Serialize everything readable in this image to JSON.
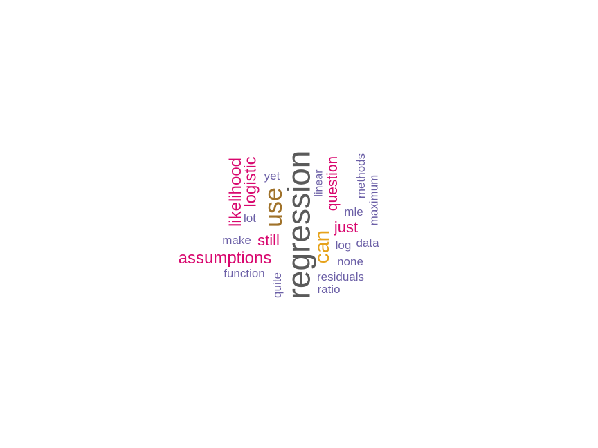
{
  "palette": {
    "gray": "#5a5a5a",
    "brown": "#a0722a",
    "orange": "#e6a21a",
    "magenta": "#d8076e",
    "purple": "#6b5fa6"
  },
  "words": [
    {
      "text": "regression",
      "color": "#5a5a5a",
      "rotated": true
    },
    {
      "text": "use",
      "color": "#a0722a",
      "rotated": true
    },
    {
      "text": "can",
      "color": "#e6a21a",
      "rotated": true
    },
    {
      "text": "assumptions",
      "color": "#d8076e",
      "rotated": false
    },
    {
      "text": "likelihood",
      "color": "#d8076e",
      "rotated": true
    },
    {
      "text": "logistic",
      "color": "#d8076e",
      "rotated": true
    },
    {
      "text": "question",
      "color": "#d8076e",
      "rotated": true
    },
    {
      "text": "still",
      "color": "#d8076e",
      "rotated": false
    },
    {
      "text": "just",
      "color": "#d8076e",
      "rotated": false
    },
    {
      "text": "yet",
      "color": "#6b5fa6",
      "rotated": false
    },
    {
      "text": "lot",
      "color": "#6b5fa6",
      "rotated": false
    },
    {
      "text": "make",
      "color": "#6b5fa6",
      "rotated": false
    },
    {
      "text": "function",
      "color": "#6b5fa6",
      "rotated": false
    },
    {
      "text": "quite",
      "color": "#6b5fa6",
      "rotated": true
    },
    {
      "text": "linear",
      "color": "#6b5fa6",
      "rotated": true
    },
    {
      "text": "methods",
      "color": "#6b5fa6",
      "rotated": true
    },
    {
      "text": "maximum",
      "color": "#6b5fa6",
      "rotated": true
    },
    {
      "text": "mle",
      "color": "#6b5fa6",
      "rotated": false
    },
    {
      "text": "log",
      "color": "#6b5fa6",
      "rotated": false
    },
    {
      "text": "data",
      "color": "#6b5fa6",
      "rotated": false
    },
    {
      "text": "none",
      "color": "#6b5fa6",
      "rotated": false
    },
    {
      "text": "residuals",
      "color": "#6b5fa6",
      "rotated": false
    },
    {
      "text": "ratio",
      "color": "#6b5fa6",
      "rotated": false
    }
  ]
}
